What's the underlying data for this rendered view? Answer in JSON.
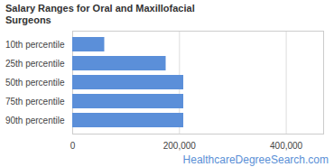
{
  "chart_data": {
    "type": "bar",
    "orientation": "horizontal",
    "title": "Salary Ranges for Oral and Maxillofacial Surgeons",
    "caption": "HealthcareDegreeSearch.com",
    "categories": [
      "10th percentile",
      "25th percentile",
      "50th percentile",
      "75th percentile",
      "90th percentile"
    ],
    "values": [
      60000,
      175000,
      208000,
      208000,
      208000
    ],
    "color": "#5b8fd9",
    "xlim": [
      0,
      470000
    ],
    "xticks": [
      0,
      {
        "value": 200000,
        "label": "200,000"
      },
      {
        "value": 400000,
        "label": "400,000"
      }
    ],
    "grid": true
  }
}
